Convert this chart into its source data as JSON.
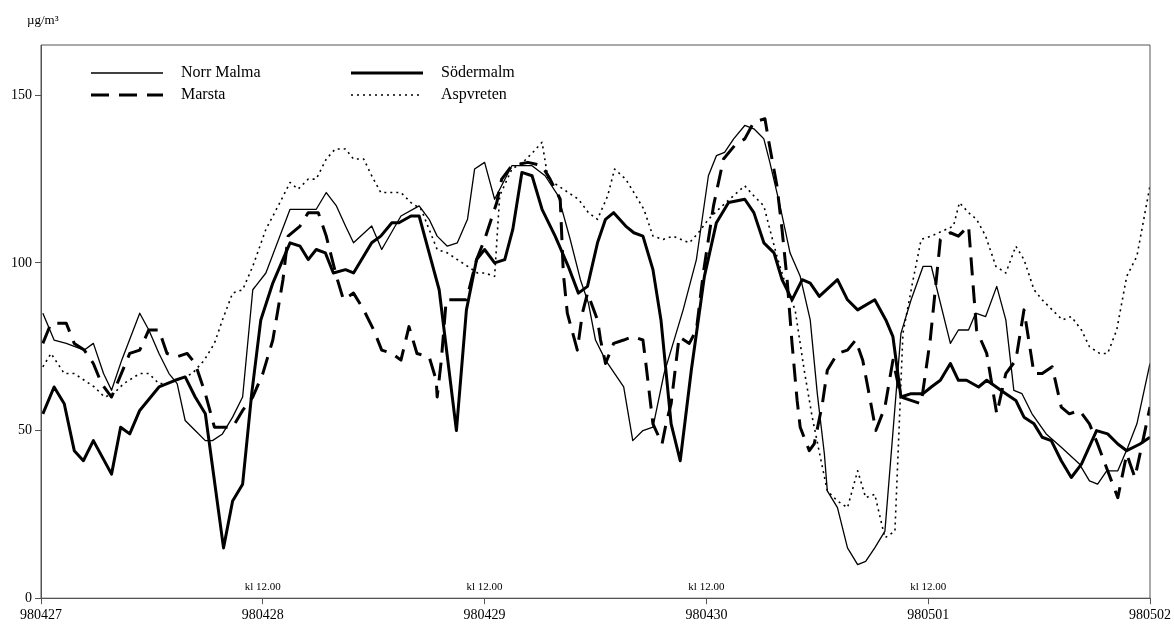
{
  "chart_data": {
    "type": "line",
    "ylabel": "µg/m³",
    "xlim": [
      "--04-27",
      "--05-02"
    ],
    "xticks": [
      {
        "value": "--04-27",
        "label": "980427"
      },
      {
        "value": "--04-28",
        "label": "980428"
      },
      {
        "value": "--04-29",
        "label": "980429"
      },
      {
        "value": "--04-30",
        "label": "980430"
      },
      {
        "value": "--05-01",
        "label": "980501"
      },
      {
        "value": "--05-02",
        "label": "980502"
      }
    ],
    "ylim": [
      0,
      165
    ],
    "yticks": [
      0,
      50,
      100,
      150
    ],
    "grid": false,
    "legend": "top left",
    "marker": "none",
    "annotations": [
      "kl 12.00",
      "kl 12.00",
      "kl 12.00",
      "kl 12.00"
    ],
    "series": [
      {
        "name": "Norr Malma",
        "color": "#000000",
        "line_style": "solid",
        "x": [
          "--04-27T00:12",
          "--04-27T01:25",
          "--04-27T02:44",
          "--04-27T04:41",
          "--04-27T05:40",
          "--04-27T06:46",
          "--04-27T07:38",
          "--04-27T08:44",
          "--04-27T10:41",
          "--04-27T11:40",
          "--04-27T12:46",
          "--04-27T13:51",
          "--04-27T14:44",
          "--04-27T15:36",
          "--04-27T16:41",
          "--04-27T17:47",
          "--04-27T18:33",
          "--04-27T19:38",
          "--04-27T20:44",
          "--04-27T21:49",
          "--04-27T22:55",
          "--04-28T00:20",
          "--04-28T02:57",
          "--04-28T04:02",
          "--04-28T05:47",
          "--04-28T06:52",
          "--04-28T07:58",
          "--04-28T08:57",
          "--04-28T09:49",
          "--04-28T11:47",
          "--04-28T12:52",
          "--04-28T14:57",
          "--04-28T16:55",
          "--04-28T18:00",
          "--04-28T18:52",
          "--04-28T19:58",
          "--04-28T21:03",
          "--04-28T22:09",
          "--04-28T22:55",
          "--04-29T00:00",
          "--04-29T01:05",
          "--04-29T02:57",
          "--04-29T05:08",
          "--04-29T06:33",
          "--04-29T07:58",
          "--04-29T09:16",
          "--04-29T10:22",
          "--04-29T11:14",
          "--04-29T12:00",
          "--04-29T13:05",
          "--04-29T15:03",
          "--04-29T16:02",
          "--04-29T17:08",
          "--04-29T18:13",
          "--04-29T19:25",
          "--04-29T21:29",
          "--04-29T22:55",
          "--04-30T00:13",
          "--04-30T01:05",
          "--04-30T01:58",
          "--04-30T02:57",
          "--04-30T04:09",
          "--04-30T05:08",
          "--04-30T06:13",
          "--04-30T06:52",
          "--04-30T07:58",
          "--04-30T09:03",
          "--04-30T10:09",
          "--04-30T11:14",
          "--04-30T12:00",
          "--04-30T12:46",
          "--04-30T13:05",
          "--04-30T14:11",
          "--04-30T15:16",
          "--04-30T16:22",
          "--04-30T17:14",
          "--04-30T18:13",
          "--04-30T19:19",
          "--04-30T21:03",
          "--04-30T22:09",
          "--04-30T23:27",
          "--05-01T00:20",
          "--05-01T02:24",
          "--05-01T03:16",
          "--05-01T04:22",
          "--05-01T05:08",
          "--05-01T06:13",
          "--05-01T07:25",
          "--05-01T08:24",
          "--05-01T09:16",
          "--05-01T10:09",
          "--05-01T11:14",
          "--05-01T12:46",
          "--05-01T14:24",
          "--05-01T16:22",
          "--05-01T17:27",
          "--05-01T18:20",
          "--05-01T19:19",
          "--05-01T20:31",
          "--05-01T21:36",
          "--05-01T22:35",
          "--05-02T00:00"
        ],
        "values": [
          85,
          77,
          76,
          74,
          76,
          67,
          62,
          71,
          85,
          80,
          73,
          67,
          64,
          53,
          50,
          47,
          47,
          49,
          54,
          60,
          92,
          97,
          116,
          116,
          116,
          121,
          117,
          111,
          106,
          111,
          104,
          114,
          117,
          113,
          108,
          105,
          106,
          113,
          128,
          130,
          119,
          129,
          129,
          126,
          120,
          107,
          95,
          88,
          77,
          71,
          63,
          47,
          50,
          51,
          67,
          86,
          101,
          126,
          132,
          133,
          137,
          141,
          140,
          137,
          130,
          117,
          103,
          96,
          83,
          61,
          43,
          32,
          27,
          15,
          10,
          11,
          15,
          20,
          79,
          89,
          99,
          99,
          76,
          80,
          80,
          85,
          84,
          93,
          83,
          62,
          61,
          55,
          49,
          45,
          40,
          35,
          34,
          38,
          38,
          45,
          52,
          70
        ]
      },
      {
        "name": "Södermalm",
        "color": "#000000",
        "line_style": "solid",
        "x": [
          "--04-27T00:12",
          "--04-27T01:25",
          "--04-27T02:31",
          "--04-27T03:36",
          "--04-27T04:35",
          "--04-27T05:40",
          "--04-27T07:38",
          "--04-27T08:37",
          "--04-27T09:36",
          "--04-27T10:41",
          "--04-27T12:46",
          "--04-27T14:31",
          "--04-27T15:36",
          "--04-27T16:41",
          "--04-27T17:47",
          "--04-27T19:45",
          "--04-27T20:44",
          "--04-27T21:49",
          "--04-27T22:48",
          "--04-27T23:47",
          "--04-28T01:05",
          "--04-28T02:57",
          "--04-28T04:02",
          "--04-28T04:55",
          "--04-28T05:47",
          "--04-28T06:46",
          "--04-28T07:38",
          "--04-28T08:57",
          "--04-28T09:49",
          "--04-28T11:47",
          "--04-28T12:46",
          "--04-28T13:58",
          "--04-28T14:44",
          "--04-28T16:02",
          "--04-28T16:55",
          "--04-28T18:00",
          "--04-28T19:05",
          "--04-28T20:57",
          "--04-28T22:02",
          "--04-28T23:08",
          "--04-29T00:00",
          "--04-29T01:05",
          "--04-29T02:11",
          "--04-29T03:03",
          "--04-29T04:02",
          "--04-29T05:08",
          "--04-29T06:13",
          "--04-29T07:38",
          "--04-29T09:03",
          "--04-29T10:09",
          "--04-29T11:08",
          "--04-29T12:13",
          "--04-29T13:05",
          "--04-29T13:58",
          "--04-29T15:16",
          "--04-29T16:09",
          "--04-29T17:08",
          "--04-29T18:13",
          "--04-29T19:05",
          "--04-29T20:11",
          "--04-29T21:10",
          "--04-29T22:22",
          "--04-29T23:47",
          "--04-30T01:05",
          "--04-30T02:24",
          "--04-30T04:09",
          "--04-30T05:08",
          "--04-30T06:13",
          "--04-30T07:19",
          "--04-30T08:11",
          "--04-30T09:16",
          "--04-30T10:22",
          "--04-30T11:14",
          "--04-30T12:13",
          "--04-30T14:11",
          "--04-30T15:16",
          "--04-30T16:22",
          "--04-30T18:13",
          "--04-30T19:25",
          "--04-30T20:11",
          "--04-30T21:03",
          "--04-30T22:09",
          "--04-30T23:27",
          "--05-01T00:20",
          "--05-01T01:19",
          "--05-01T02:24",
          "--05-01T03:16",
          "--05-01T04:09",
          "--05-01T05:27",
          "--05-01T06:20",
          "--05-01T08:24",
          "--05-01T09:29",
          "--05-01T10:22",
          "--05-01T11:27",
          "--05-01T12:20",
          "--05-01T13:19",
          "--05-01T14:24",
          "--05-01T15:29",
          "--05-01T16:35",
          "--05-01T18:13",
          "--05-01T19:25",
          "--05-01T20:31",
          "--05-01T21:29",
          "--05-01T22:55",
          "--05-02T00:00"
        ],
        "values": [
          55,
          63,
          58,
          44,
          41,
          47,
          37,
          51,
          49,
          56,
          63,
          65,
          66,
          60,
          55,
          15,
          29,
          34,
          61,
          83,
          94,
          106,
          105,
          101,
          104,
          103,
          97,
          98,
          97,
          106,
          108,
          112,
          112,
          114,
          114,
          103,
          92,
          50,
          86,
          101,
          104,
          100,
          101,
          110,
          127,
          126,
          116,
          108,
          99,
          91,
          93,
          106,
          113,
          115,
          111,
          109,
          108,
          98,
          83,
          52,
          41,
          68,
          96,
          112,
          118,
          119,
          115,
          106,
          103,
          95,
          89,
          95,
          94,
          90,
          95,
          89,
          86,
          89,
          83,
          78,
          60,
          61,
          61,
          63,
          65,
          70,
          65,
          65,
          63,
          65,
          61,
          59,
          54,
          52,
          48,
          47,
          41,
          36,
          40,
          50,
          49,
          46,
          44,
          46,
          48
        ]
      },
      {
        "name": "Marsta",
        "color": "#000000",
        "line_style": "dashed",
        "x": [
          "--04-27T00:12",
          "--04-27T01:05",
          "--04-27T01:38",
          "--04-27T02:44",
          "--04-27T03:36",
          "--04-27T04:41",
          "--04-27T05:40",
          "--04-27T06:33",
          "--04-27T07:38",
          "--04-27T09:36",
          "--04-27T10:41",
          "--04-27T11:40",
          "--04-27T12:46",
          "--04-27T13:38",
          "--04-27T14:44",
          "--04-27T15:49",
          "--04-27T16:41",
          "--04-27T17:47",
          "--04-27T18:46",
          "--04-27T20:44",
          "--04-27T21:49",
          "--04-27T22:55",
          "--04-28T00:00",
          "--04-28T01:05",
          "--04-28T02:11",
          "--04-28T02:44",
          "--04-28T04:02",
          "--04-28T04:55",
          "--04-28T06:00",
          "--04-28T06:52",
          "--04-28T07:58",
          "--04-28T08:44",
          "--04-28T09:49",
          "--04-28T10:55",
          "--04-28T12:00",
          "--04-28T12:52",
          "--04-28T13:58",
          "--04-28T14:57",
          "--04-28T15:49",
          "--04-28T16:41",
          "--04-28T18:00",
          "--04-28T18:46",
          "--04-28T18:52",
          "--04-28T19:19",
          "--04-28T19:51",
          "--04-28T20:57",
          "--04-28T22:02",
          "--04-28T23:08",
          "--04-29T00:00",
          "--04-29T01:19",
          "--04-29T01:51",
          "--04-29T02:57",
          "--04-29T04:41",
          "--04-29T06:13",
          "--04-29T07:05",
          "--04-29T08:11",
          "--04-29T08:31",
          "--04-29T08:57",
          "--04-29T10:02",
          "--04-29T10:35",
          "--04-29T11:08",
          "--04-29T12:13",
          "--04-29T12:33",
          "--04-29T13:05",
          "--04-29T13:58",
          "--04-29T15:03",
          "--04-29T16:02",
          "--04-29T17:08",
          "--04-29T17:27",
          "--04-29T18:13",
          "--04-29T19:12",
          "--04-29T19:38",
          "--04-29T20:11",
          "--04-29T21:03",
          "--04-29T22:09",
          "--04-29T22:55",
          "--04-29T23:40",
          "--04-30T00:46",
          "--04-30T01:51",
          "--04-30T03:03",
          "--04-30T04:09",
          "--04-30T05:08",
          "--04-30T06:20",
          "--04-30T06:46",
          "--04-30T07:38",
          "--04-30T08:11",
          "--04-30T08:44",
          "--04-30T09:16",
          "--04-30T09:49",
          "--04-30T10:09",
          "--04-30T11:08",
          "--04-30T11:40",
          "--04-30T12:33",
          "--04-30T13:05",
          "--04-30T14:11",
          "--04-30T15:16",
          "--04-30T16:09",
          "--04-30T16:55",
          "--04-30T17:40",
          "--04-30T18:20",
          "--04-30T19:19",
          "--04-30T20:11",
          "--04-30T21:03",
          "--04-30T23:14",
          "--05-01T00:13",
          "--05-01T01:19",
          "--05-01T02:24",
          "--05-01T03:16",
          "--05-01T04:22",
          "--05-01T05:14",
          "--05-01T06:20",
          "--05-01T07:25",
          "--05-01T08:24",
          "--05-01T09:29",
          "--05-01T10:22",
          "--05-01T11:27",
          "--05-01T12:20",
          "--05-01T13:25",
          "--05-01T14:24",
          "--05-01T15:16",
          "--05-01T16:22",
          "--05-01T17:27",
          "--05-01T18:20",
          "--05-01T19:25",
          "--05-01T20:31",
          "--05-01T21:29",
          "--05-01T22:22",
          "--05-01T23:14",
          "--05-02T00:00"
        ],
        "values": [
          76,
          82,
          82,
          82,
          76,
          74,
          70,
          64,
          60,
          73,
          74,
          80,
          80,
          73,
          72,
          73,
          70,
          61,
          51,
          51,
          56,
          60,
          67,
          77,
          95,
          108,
          111,
          115,
          115,
          108,
          96,
          89,
          91,
          86,
          80,
          74,
          73,
          71,
          81,
          73,
          72,
          65,
          60,
          71,
          89,
          89,
          89,
          101,
          107,
          118,
          125,
          129,
          130,
          129,
          125,
          119,
          97,
          85,
          74,
          85,
          91,
          83,
          77,
          70,
          76,
          77,
          78,
          77,
          70,
          52,
          46,
          52,
          58,
          78,
          76,
          80,
          97,
          117,
          131,
          135,
          137,
          142,
          143,
          136,
          123,
          110,
          95,
          76,
          59,
          51,
          44,
          46,
          58,
          68,
          73,
          74,
          77,
          71,
          60,
          50,
          57,
          71,
          60,
          58,
          77,
          107,
          109,
          108,
          111,
          80,
          73,
          55,
          67,
          71,
          86,
          67,
          67,
          69,
          57,
          55,
          56,
          52,
          46,
          38,
          30,
          43,
          36,
          47,
          57
        ]
      },
      {
        "name": "Aspvreten",
        "color": "#000000",
        "line_style": "dotted",
        "x": [
          "--04-27T00:12",
          "--04-27T01:05",
          "--04-27T02:31",
          "--04-27T03:36",
          "--04-27T04:41",
          "--04-27T05:47",
          "--04-27T06:52",
          "--04-27T07:51",
          "--04-27T08:57",
          "--04-27T10:41",
          "--04-27T11:40",
          "--04-27T12:46",
          "--04-27T13:38",
          "--04-27T16:22",
          "--04-27T17:40",
          "--04-27T18:46",
          "--04-27T19:38",
          "--04-27T20:44",
          "--04-27T21:49",
          "--04-27T22:55",
          "--04-28T00:20",
          "--04-28T01:51",
          "--04-28T02:57",
          "--04-28T03:49",
          "--04-28T04:55",
          "--04-28T05:47",
          "--04-28T06:52",
          "--04-28T07:51",
          "--04-28T08:57",
          "--04-28T09:49",
          "--04-28T10:55",
          "--04-28T11:47",
          "--04-28T12:46",
          "--04-28T13:58",
          "--04-28T14:57",
          "--04-28T16:02",
          "--04-28T17:08",
          "--04-28T18:52",
          "--04-28T19:58",
          "--04-28T21:03",
          "--04-28T22:09",
          "--04-28T23:14",
          "--04-29T00:00",
          "--04-29T01:05",
          "--04-29T01:38",
          "--04-29T02:57",
          "--04-29T04:09",
          "--04-29T05:14",
          "--04-29T06:13",
          "--04-29T06:52",
          "--04-29T07:58",
          "--04-29T09:03",
          "--04-29T10:09",
          "--04-29T11:14",
          "--04-29T12:13",
          "--04-29T13:19",
          "--04-29T14:04",
          "--04-29T15:16",
          "--04-29T16:22",
          "--04-29T17:14",
          "--04-29T18:13",
          "--04-29T19:19",
          "--04-29T20:24",
          "--04-29T22:09",
          "--04-29T23:08",
          "--04-30T00:13",
          "--04-30T01:19",
          "--04-30T02:31",
          "--04-30T04:09",
          "--04-30T05:08",
          "--04-30T06:13",
          "--04-30T06:52",
          "--04-30T07:38",
          "--04-30T08:44",
          "--04-30T09:36",
          "--04-30T10:35",
          "--04-30T11:27",
          "--04-30T12:20",
          "--04-30T13:05",
          "--04-30T14:11",
          "--04-30T15:16",
          "--04-30T16:22",
          "--04-30T17:14",
          "--04-30T18:13",
          "--04-30T19:19",
          "--04-30T20:24",
          "--04-30T21:16",
          "--04-30T22:22",
          "--04-30T23:14",
          "--05-01T00:20",
          "--05-01T02:44",
          "--05-01T03:23",
          "--05-01T04:22",
          "--05-01T05:14",
          "--05-01T06:13",
          "--05-01T07:19",
          "--05-01T08:24",
          "--05-01T09:29",
          "--05-01T10:22",
          "--05-01T11:27",
          "--05-01T12:20",
          "--05-01T13:25",
          "--05-01T14:31",
          "--05-01T15:29",
          "--05-01T16:35",
          "--05-01T17:27",
          "--05-01T18:33",
          "--05-01T19:25",
          "--05-01T20:24",
          "--05-01T21:29",
          "--05-01T22:35",
          "--05-02T00:00"
        ],
        "values": [
          69,
          73,
          67,
          67,
          65,
          63,
          60,
          61,
          64,
          67,
          67,
          64,
          64,
          67,
          71,
          76,
          83,
          91,
          92,
          99,
          110,
          118,
          124,
          122,
          125,
          125,
          131,
          134,
          134,
          131,
          131,
          126,
          121,
          121,
          121,
          118,
          116,
          104,
          103,
          101,
          99,
          97,
          97,
          96,
          120,
          128,
          130,
          133,
          136,
          125,
          123,
          121,
          119,
          115,
          113,
          120,
          128,
          125,
          120,
          116,
          108,
          107,
          108,
          106,
          109,
          113,
          116,
          119,
          123,
          120,
          117,
          110,
          102,
          92,
          86,
          68,
          54,
          42,
          32,
          29,
          27,
          38,
          30,
          31,
          18,
          20,
          79,
          95,
          107,
          108,
          111,
          118,
          115,
          113,
          108,
          99,
          97,
          105,
          101,
          92,
          89,
          86,
          83,
          84,
          80,
          75,
          73,
          73,
          80,
          96,
          102,
          123
        ]
      }
    ]
  }
}
